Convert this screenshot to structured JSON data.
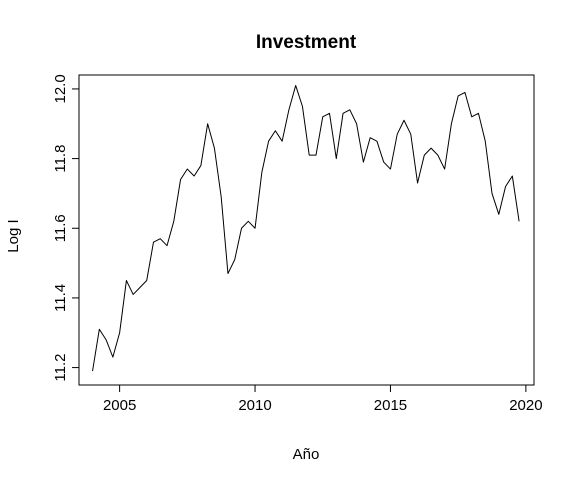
{
  "chart_data": {
    "type": "line",
    "title": "Investment",
    "xlabel": "Año",
    "ylabel": "Log I",
    "xlim": [
      2003.5,
      2020.3
    ],
    "ylim": [
      11.15,
      12.04
    ],
    "xticks": [
      2005,
      2010,
      2015,
      2020
    ],
    "xtick_labels": [
      "2005",
      "2010",
      "2015",
      "2020"
    ],
    "yticks": [
      11.2,
      11.4,
      11.6,
      11.8,
      12.0
    ],
    "ytick_labels": [
      "11.2",
      "11.4",
      "11.6",
      "11.8",
      "12.0"
    ],
    "grid": false,
    "legend": "none",
    "line_color": "#000000",
    "series": [
      {
        "x": [
          2004.0,
          2004.25,
          2004.5,
          2004.75,
          2005.0,
          2005.25,
          2005.5,
          2005.75,
          2006.0,
          2006.25,
          2006.5,
          2006.75,
          2007.0,
          2007.25,
          2007.5,
          2007.75,
          2008.0,
          2008.25,
          2008.5,
          2008.75,
          2009.0,
          2009.25,
          2009.5,
          2009.75,
          2010.0,
          2010.25,
          2010.5,
          2010.75,
          2011.0,
          2011.25,
          2011.5,
          2011.75,
          2012.0,
          2012.25,
          2012.5,
          2012.75,
          2013.0,
          2013.25,
          2013.5,
          2013.75,
          2014.0,
          2014.25,
          2014.5,
          2014.75,
          2015.0,
          2015.25,
          2015.5,
          2015.75,
          2016.0,
          2016.25,
          2016.5,
          2016.75,
          2017.0,
          2017.25,
          2017.5,
          2017.75,
          2018.0,
          2018.25,
          2018.5,
          2018.75,
          2019.0,
          2019.25,
          2019.5,
          2019.75
        ],
        "values": [
          11.19,
          11.31,
          11.28,
          11.23,
          11.3,
          11.45,
          11.41,
          11.43,
          11.45,
          11.56,
          11.57,
          11.55,
          11.62,
          11.74,
          11.77,
          11.75,
          11.78,
          11.9,
          11.83,
          11.69,
          11.47,
          11.51,
          11.6,
          11.62,
          11.6,
          11.76,
          11.85,
          11.88,
          11.85,
          11.94,
          12.01,
          11.95,
          11.81,
          11.81,
          11.92,
          11.93,
          11.8,
          11.93,
          11.94,
          11.9,
          11.79,
          11.86,
          11.85,
          11.79,
          11.77,
          11.87,
          11.91,
          11.87,
          11.73,
          11.81,
          11.83,
          11.81,
          11.77,
          11.9,
          11.98,
          11.99,
          11.92,
          11.93,
          11.85,
          11.7,
          11.64,
          11.72,
          11.75,
          11.62
        ]
      }
    ]
  }
}
